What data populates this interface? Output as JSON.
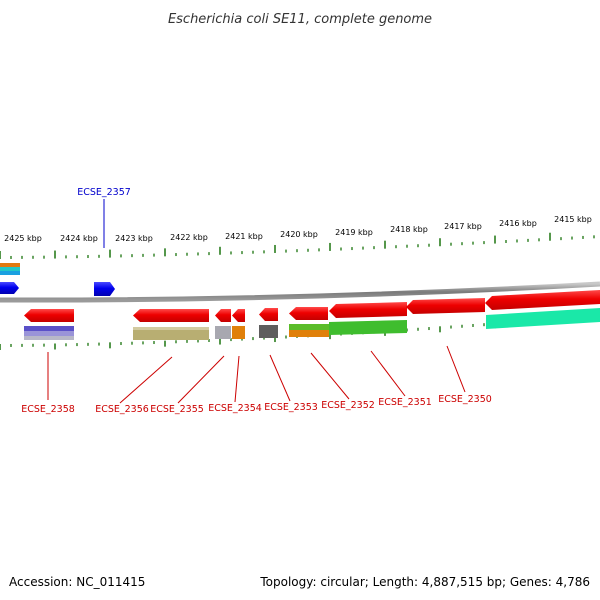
{
  "title": "Escherichia coli SE11, complete genome",
  "accession_text": "Accession: NC_011415",
  "summary_text": "Topology: circular; Length: 4,887,515 bp; Genes: 4,786",
  "colors": {
    "backbone": "#8a8a8a",
    "tick": "#2a7d1e",
    "gene_forward": "#0000ee",
    "gene_reverse": "#ee0000",
    "label_forward": "#0000cc",
    "label_reverse": "#cc0000"
  },
  "scale_labels": [
    "2425 kbp",
    "2424 kbp",
    "2423 kbp",
    "2422 kbp",
    "2421 kbp",
    "2420 kbp",
    "2419 kbp",
    "2418 kbp",
    "2417 kbp",
    "2416 kbp",
    "2415 kbp"
  ],
  "genes": [
    {
      "id": "ECSE_2357",
      "strand": "forward"
    },
    {
      "id": "ECSE_2358",
      "strand": "reverse"
    },
    {
      "id": "ECSE_2356",
      "strand": "reverse"
    },
    {
      "id": "ECSE_2355",
      "strand": "reverse"
    },
    {
      "id": "ECSE_2354",
      "strand": "reverse"
    },
    {
      "id": "ECSE_2353",
      "strand": "reverse"
    },
    {
      "id": "ECSE_2352",
      "strand": "reverse"
    },
    {
      "id": "ECSE_2351",
      "strand": "reverse"
    },
    {
      "id": "ECSE_2350",
      "strand": "reverse"
    }
  ],
  "icons": [
    "gene-arrow-icon",
    "feature-block-icon"
  ]
}
